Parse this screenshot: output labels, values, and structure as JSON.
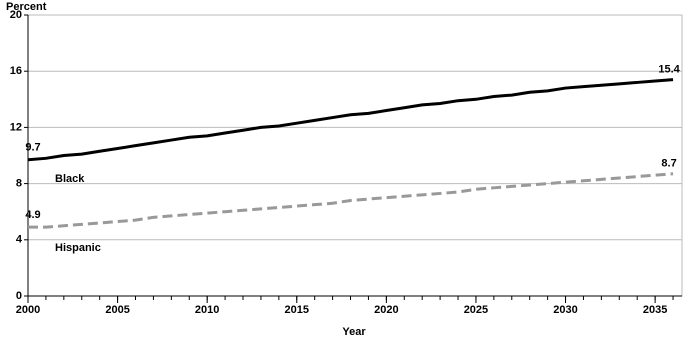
{
  "chart_data": {
    "type": "line",
    "y_label": "Percent",
    "x_label": "Year",
    "x": [
      2000,
      2001,
      2002,
      2003,
      2004,
      2005,
      2006,
      2007,
      2008,
      2009,
      2010,
      2011,
      2012,
      2013,
      2014,
      2015,
      2016,
      2017,
      2018,
      2019,
      2020,
      2021,
      2022,
      2023,
      2024,
      2025,
      2026,
      2027,
      2028,
      2029,
      2030,
      2031,
      2032,
      2033,
      2034,
      2035,
      2036
    ],
    "series": [
      {
        "name": "Black",
        "color": "#000000",
        "dash": false,
        "values": [
          9.7,
          9.8,
          10.0,
          10.1,
          10.3,
          10.5,
          10.7,
          10.9,
          11.1,
          11.3,
          11.4,
          11.6,
          11.8,
          12.0,
          12.1,
          12.3,
          12.5,
          12.7,
          12.9,
          13.0,
          13.2,
          13.4,
          13.6,
          13.7,
          13.9,
          14.0,
          14.2,
          14.3,
          14.5,
          14.6,
          14.8,
          14.9,
          15.0,
          15.1,
          15.2,
          15.3,
          15.4
        ]
      },
      {
        "name": "Hispanic",
        "color": "#999999",
        "dash": true,
        "values": [
          4.9,
          4.9,
          5.0,
          5.1,
          5.2,
          5.3,
          5.4,
          5.6,
          5.7,
          5.8,
          5.9,
          6.0,
          6.1,
          6.2,
          6.3,
          6.4,
          6.5,
          6.6,
          6.8,
          6.9,
          7.0,
          7.1,
          7.2,
          7.3,
          7.4,
          7.6,
          7.7,
          7.8,
          7.9,
          8.0,
          8.1,
          8.2,
          8.3,
          8.4,
          8.5,
          8.6,
          8.7
        ]
      }
    ],
    "xlim": [
      2000,
      2036.5
    ],
    "xticks": [
      2000,
      2005,
      2010,
      2015,
      2020,
      2025,
      2030,
      2035
    ],
    "ylim": [
      0,
      20
    ],
    "yticks": [
      0,
      4,
      8,
      12,
      16,
      20
    ],
    "grid": true
  }
}
